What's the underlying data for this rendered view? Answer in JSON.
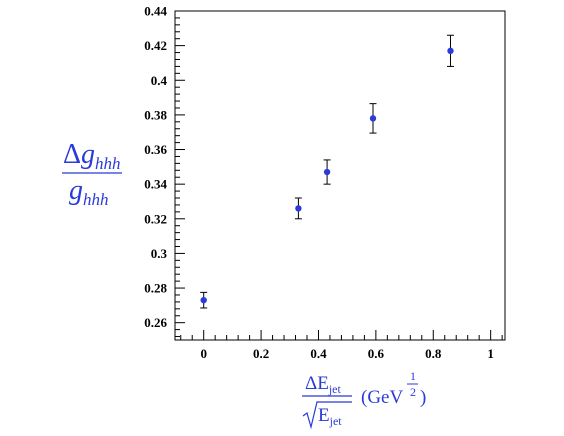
{
  "chart_data": {
    "type": "scatter",
    "title": "",
    "colors": {
      "points": "#2b3bd9",
      "errorbars": "#000000",
      "labels": "#2b3bd9"
    },
    "ylabel": {
      "numerator_delta": "Δ",
      "base": "g",
      "subscript": "hhh"
    },
    "xlabel": {
      "delta": "Δ",
      "base": "E",
      "subscript": "jet",
      "unit_open": "(GeV",
      "exp_num": "1",
      "exp_den": "2",
      "unit_close": ")"
    },
    "xlim": [
      -0.1,
      1.05
    ],
    "ylim": [
      0.25,
      0.44
    ],
    "x_ticks": [
      "0",
      "0.2",
      "0.4",
      "0.6",
      "0.8",
      "1"
    ],
    "x_tick_values": [
      0,
      0.2,
      0.4,
      0.6,
      0.8,
      1
    ],
    "y_ticks": [
      "0.26",
      "0.28",
      "0.3",
      "0.32",
      "0.34",
      "0.36",
      "0.38",
      "0.4",
      "0.42",
      "0.44"
    ],
    "y_tick_values": [
      0.26,
      0.28,
      0.3,
      0.32,
      0.34,
      0.36,
      0.38,
      0.4,
      0.42,
      0.44
    ],
    "grid": false,
    "series": [
      {
        "points": [
          {
            "x": 0.0,
            "y": 0.273,
            "err": 0.0045
          },
          {
            "x": 0.33,
            "y": 0.326,
            "err": 0.006
          },
          {
            "x": 0.43,
            "y": 0.347,
            "err": 0.007
          },
          {
            "x": 0.59,
            "y": 0.378,
            "err": 0.0085
          },
          {
            "x": 0.86,
            "y": 0.417,
            "err": 0.009
          }
        ]
      }
    ]
  }
}
